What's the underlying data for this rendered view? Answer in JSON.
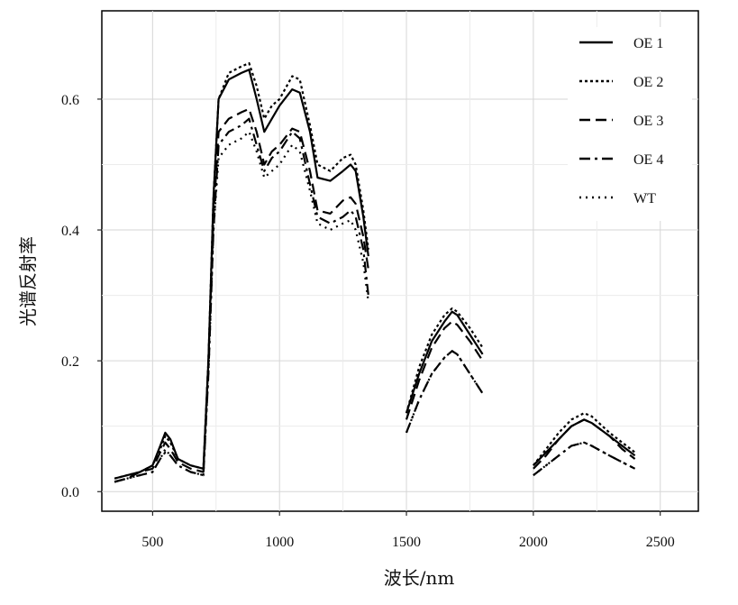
{
  "chart_data": {
    "type": "line",
    "xlabel": "波长/nm",
    "ylabel": "光谱反射率",
    "xlim": [
      300,
      2650
    ],
    "ylim": [
      -0.03,
      0.735
    ],
    "xticks": [
      500,
      1000,
      1500,
      2000,
      2500
    ],
    "xtick_labels": [
      "500",
      "1000",
      "1500",
      "2000",
      "2500"
    ],
    "yticks": [
      0.0,
      0.2,
      0.4,
      0.6
    ],
    "ytick_labels": [
      "0.0",
      "0.2",
      "0.4",
      "0.6"
    ],
    "grid": true,
    "legend_position": "top-right",
    "series": [
      {
        "name": "OE 1",
        "dash": "solid",
        "segments": [
          [
            [
              350,
              0.02
            ],
            [
              400,
              0.025
            ],
            [
              450,
              0.03
            ],
            [
              500,
              0.04
            ],
            [
              530,
              0.07
            ],
            [
              550,
              0.09
            ],
            [
              570,
              0.08
            ],
            [
              600,
              0.05
            ],
            [
              650,
              0.04
            ],
            [
              700,
              0.035
            ],
            [
              720,
              0.2
            ],
            [
              740,
              0.45
            ],
            [
              760,
              0.6
            ],
            [
              800,
              0.63
            ],
            [
              850,
              0.64
            ],
            [
              880,
              0.645
            ],
            [
              910,
              0.6
            ],
            [
              940,
              0.55
            ],
            [
              970,
              0.57
            ],
            [
              1000,
              0.59
            ],
            [
              1050,
              0.615
            ],
            [
              1080,
              0.61
            ],
            [
              1120,
              0.55
            ],
            [
              1150,
              0.48
            ],
            [
              1200,
              0.475
            ],
            [
              1250,
              0.49
            ],
            [
              1280,
              0.5
            ],
            [
              1300,
              0.49
            ],
            [
              1330,
              0.42
            ],
            [
              1350,
              0.36
            ]
          ],
          [
            [
              1500,
              0.12
            ],
            [
              1550,
              0.18
            ],
            [
              1600,
              0.23
            ],
            [
              1650,
              0.26
            ],
            [
              1680,
              0.275
            ],
            [
              1700,
              0.27
            ],
            [
              1750,
              0.24
            ],
            [
              1800,
              0.21
            ]
          ],
          [
            [
              2000,
              0.04
            ],
            [
              2050,
              0.06
            ],
            [
              2100,
              0.08
            ],
            [
              2150,
              0.1
            ],
            [
              2200,
              0.11
            ],
            [
              2230,
              0.105
            ],
            [
              2300,
              0.085
            ],
            [
              2350,
              0.07
            ],
            [
              2400,
              0.055
            ]
          ]
        ]
      },
      {
        "name": "OE 2",
        "dash": "dot",
        "segments": [
          [
            [
              350,
              0.02
            ],
            [
              400,
              0.025
            ],
            [
              450,
              0.03
            ],
            [
              500,
              0.04
            ],
            [
              530,
              0.065
            ],
            [
              550,
              0.085
            ],
            [
              570,
              0.075
            ],
            [
              600,
              0.05
            ],
            [
              650,
              0.04
            ],
            [
              700,
              0.035
            ],
            [
              720,
              0.2
            ],
            [
              740,
              0.45
            ],
            [
              760,
              0.6
            ],
            [
              800,
              0.64
            ],
            [
              850,
              0.65
            ],
            [
              880,
              0.655
            ],
            [
              910,
              0.62
            ],
            [
              940,
              0.57
            ],
            [
              970,
              0.59
            ],
            [
              1000,
              0.6
            ],
            [
              1050,
              0.635
            ],
            [
              1080,
              0.63
            ],
            [
              1120,
              0.56
            ],
            [
              1150,
              0.5
            ],
            [
              1200,
              0.49
            ],
            [
              1250,
              0.51
            ],
            [
              1280,
              0.515
            ],
            [
              1300,
              0.5
            ],
            [
              1330,
              0.43
            ],
            [
              1350,
              0.37
            ]
          ],
          [
            [
              1500,
              0.12
            ],
            [
              1550,
              0.19
            ],
            [
              1600,
              0.24
            ],
            [
              1650,
              0.27
            ],
            [
              1680,
              0.28
            ],
            [
              1700,
              0.275
            ],
            [
              1750,
              0.25
            ],
            [
              1800,
              0.22
            ]
          ],
          [
            [
              2000,
              0.04
            ],
            [
              2050,
              0.065
            ],
            [
              2100,
              0.09
            ],
            [
              2150,
              0.11
            ],
            [
              2200,
              0.12
            ],
            [
              2230,
              0.115
            ],
            [
              2300,
              0.09
            ],
            [
              2350,
              0.075
            ],
            [
              2400,
              0.06
            ]
          ]
        ]
      },
      {
        "name": "OE 3",
        "dash": "longdash",
        "segments": [
          [
            [
              350,
              0.015
            ],
            [
              400,
              0.02
            ],
            [
              450,
              0.03
            ],
            [
              500,
              0.035
            ],
            [
              530,
              0.06
            ],
            [
              550,
              0.075
            ],
            [
              570,
              0.065
            ],
            [
              600,
              0.045
            ],
            [
              650,
              0.035
            ],
            [
              700,
              0.03
            ],
            [
              720,
              0.2
            ],
            [
              740,
              0.42
            ],
            [
              760,
              0.55
            ],
            [
              800,
              0.57
            ],
            [
              850,
              0.58
            ],
            [
              880,
              0.585
            ],
            [
              910,
              0.55
            ],
            [
              940,
              0.5
            ],
            [
              970,
              0.52
            ],
            [
              1000,
              0.53
            ],
            [
              1050,
              0.555
            ],
            [
              1080,
              0.55
            ],
            [
              1120,
              0.49
            ],
            [
              1150,
              0.43
            ],
            [
              1200,
              0.425
            ],
            [
              1250,
              0.445
            ],
            [
              1280,
              0.45
            ],
            [
              1300,
              0.44
            ],
            [
              1330,
              0.39
            ],
            [
              1350,
              0.34
            ]
          ],
          [
            [
              1500,
              0.11
            ],
            [
              1550,
              0.17
            ],
            [
              1600,
              0.22
            ],
            [
              1650,
              0.25
            ],
            [
              1680,
              0.26
            ],
            [
              1700,
              0.255
            ],
            [
              1750,
              0.23
            ],
            [
              1800,
              0.2
            ]
          ],
          [
            [
              2000,
              0.035
            ],
            [
              2050,
              0.055
            ],
            [
              2100,
              0.08
            ],
            [
              2150,
              0.1
            ],
            [
              2200,
              0.11
            ],
            [
              2230,
              0.105
            ],
            [
              2300,
              0.085
            ],
            [
              2350,
              0.065
            ],
            [
              2400,
              0.05
            ]
          ]
        ]
      },
      {
        "name": "OE 4",
        "dash": "dashdot",
        "segments": [
          [
            [
              350,
              0.015
            ],
            [
              400,
              0.02
            ],
            [
              450,
              0.025
            ],
            [
              500,
              0.03
            ],
            [
              530,
              0.05
            ],
            [
              550,
              0.06
            ],
            [
              570,
              0.055
            ],
            [
              600,
              0.04
            ],
            [
              650,
              0.03
            ],
            [
              700,
              0.025
            ],
            [
              720,
              0.18
            ],
            [
              740,
              0.4
            ],
            [
              760,
              0.53
            ],
            [
              800,
              0.55
            ],
            [
              850,
              0.56
            ],
            [
              880,
              0.57
            ],
            [
              910,
              0.53
            ],
            [
              940,
              0.49
            ],
            [
              970,
              0.51
            ],
            [
              1000,
              0.52
            ],
            [
              1050,
              0.55
            ],
            [
              1080,
              0.54
            ],
            [
              1120,
              0.47
            ],
            [
              1150,
              0.42
            ],
            [
              1200,
              0.41
            ],
            [
              1250,
              0.42
            ],
            [
              1280,
              0.43
            ],
            [
              1300,
              0.42
            ],
            [
              1330,
              0.37
            ],
            [
              1350,
              0.3
            ]
          ],
          [
            [
              1500,
              0.09
            ],
            [
              1550,
              0.14
            ],
            [
              1600,
              0.18
            ],
            [
              1650,
              0.205
            ],
            [
              1680,
              0.215
            ],
            [
              1700,
              0.21
            ],
            [
              1750,
              0.18
            ],
            [
              1800,
              0.15
            ]
          ],
          [
            [
              2000,
              0.025
            ],
            [
              2050,
              0.04
            ],
            [
              2100,
              0.055
            ],
            [
              2150,
              0.07
            ],
            [
              2200,
              0.075
            ],
            [
              2230,
              0.07
            ],
            [
              2300,
              0.055
            ],
            [
              2350,
              0.045
            ],
            [
              2400,
              0.035
            ]
          ]
        ]
      },
      {
        "name": "WT",
        "dash": "sparsedot",
        "segments": [
          [
            [
              350,
              0.015
            ],
            [
              400,
              0.02
            ],
            [
              450,
              0.025
            ],
            [
              500,
              0.03
            ],
            [
              530,
              0.05
            ],
            [
              550,
              0.065
            ],
            [
              570,
              0.055
            ],
            [
              600,
              0.04
            ],
            [
              650,
              0.03
            ],
            [
              700,
              0.025
            ],
            [
              720,
              0.18
            ],
            [
              740,
              0.4
            ],
            [
              760,
              0.51
            ],
            [
              800,
              0.53
            ],
            [
              850,
              0.54
            ],
            [
              880,
              0.55
            ],
            [
              910,
              0.52
            ],
            [
              940,
              0.48
            ],
            [
              970,
              0.49
            ],
            [
              1000,
              0.5
            ],
            [
              1050,
              0.53
            ],
            [
              1080,
              0.52
            ],
            [
              1120,
              0.46
            ],
            [
              1150,
              0.41
            ],
            [
              1200,
              0.4
            ],
            [
              1250,
              0.41
            ],
            [
              1280,
              0.415
            ],
            [
              1300,
              0.4
            ],
            [
              1330,
              0.35
            ],
            [
              1350,
              0.29
            ]
          ],
          [
            [
              1500,
              0.09
            ],
            [
              1550,
              0.14
            ],
            [
              1600,
              0.18
            ],
            [
              1650,
              0.205
            ],
            [
              1680,
              0.215
            ],
            [
              1700,
              0.21
            ],
            [
              1750,
              0.18
            ],
            [
              1800,
              0.15
            ]
          ],
          [
            [
              2000,
              0.025
            ],
            [
              2050,
              0.04
            ],
            [
              2100,
              0.055
            ],
            [
              2150,
              0.07
            ],
            [
              2200,
              0.075
            ],
            [
              2230,
              0.07
            ],
            [
              2300,
              0.055
            ],
            [
              2350,
              0.045
            ],
            [
              2400,
              0.035
            ]
          ]
        ]
      }
    ]
  }
}
